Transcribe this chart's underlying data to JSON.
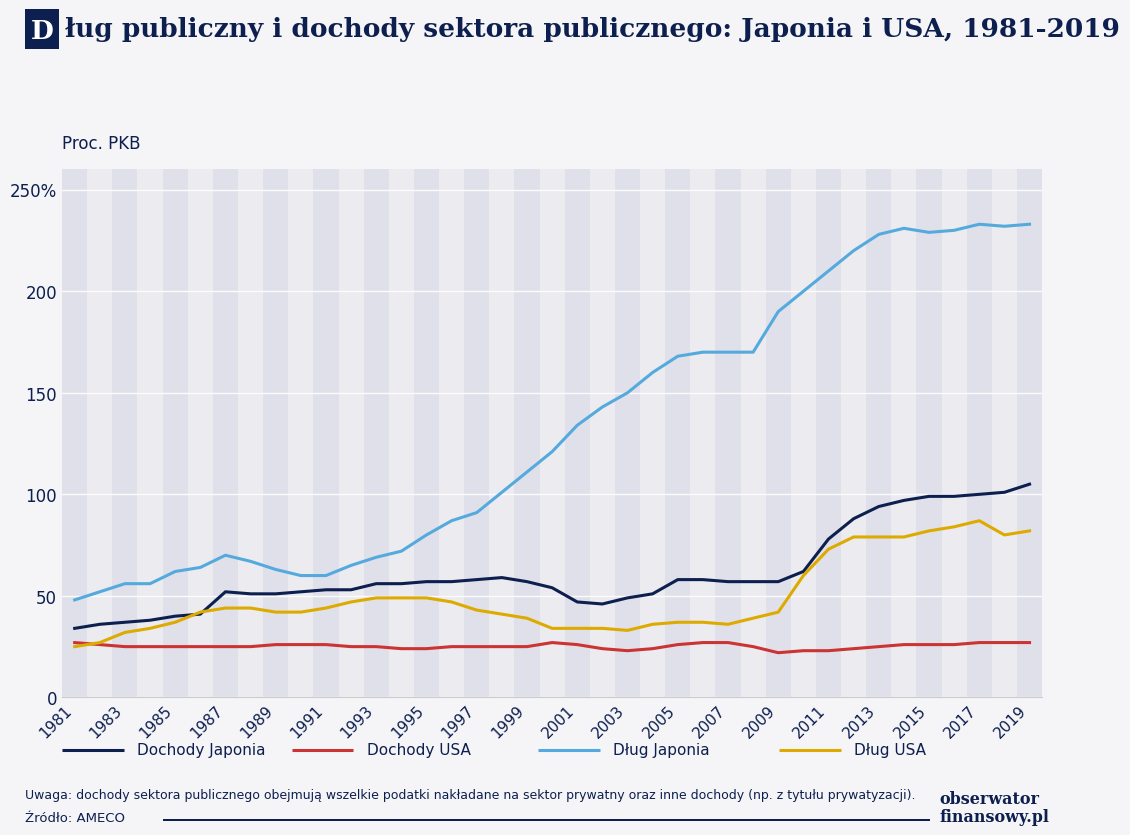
{
  "title_rest": "ług publiczny i dochody sektora publicznego: Japonia i USA, 1981-2019",
  "ylabel": "Proc. PKB",
  "background_color": "#f5f5f8",
  "plot_bg_color": "#ebebf0",
  "stripe_color_odd": "#e0e0ea",
  "stripe_color_even": "#ebebf0",
  "title_color": "#0d1f4e",
  "axis_color": "#0d1f4e",
  "text_color": "#1a1a2e",
  "note": "Uwaga: dochody sektora publicznego obejmują wszelkie podatki nakładane na sektor prywatny oraz inne dochody (np. z tytułu prywatyzacji).",
  "source": "Źródło: AMECO",
  "years": [
    1981,
    1982,
    1983,
    1984,
    1985,
    1986,
    1987,
    1988,
    1989,
    1990,
    1991,
    1992,
    1993,
    1994,
    1995,
    1996,
    1997,
    1998,
    1999,
    2000,
    2001,
    2002,
    2003,
    2004,
    2005,
    2006,
    2007,
    2008,
    2009,
    2010,
    2011,
    2012,
    2013,
    2014,
    2015,
    2016,
    2017,
    2018,
    2019
  ],
  "dochody_japonia": [
    34,
    36,
    37,
    38,
    40,
    41,
    52,
    51,
    51,
    52,
    53,
    53,
    56,
    56,
    57,
    57,
    58,
    59,
    57,
    54,
    47,
    46,
    49,
    51,
    58,
    58,
    57,
    57,
    57,
    62,
    78,
    88,
    94,
    97,
    99,
    99,
    100,
    101,
    105
  ],
  "dochody_usa": [
    27,
    26,
    25,
    25,
    25,
    25,
    25,
    25,
    26,
    26,
    26,
    25,
    25,
    24,
    24,
    25,
    25,
    25,
    25,
    27,
    26,
    24,
    23,
    24,
    26,
    27,
    27,
    25,
    22,
    23,
    23,
    24,
    25,
    26,
    26,
    26,
    27,
    27,
    27
  ],
  "dlug_japonia": [
    48,
    52,
    56,
    56,
    62,
    64,
    70,
    67,
    63,
    60,
    60,
    65,
    69,
    72,
    80,
    87,
    91,
    101,
    111,
    121,
    134,
    143,
    150,
    160,
    168,
    170,
    170,
    170,
    190,
    200,
    210,
    220,
    228,
    231,
    229,
    230,
    233,
    232,
    233
  ],
  "dlug_usa": [
    25,
    27,
    32,
    34,
    37,
    42,
    44,
    44,
    42,
    42,
    44,
    47,
    49,
    49,
    49,
    47,
    43,
    41,
    39,
    34,
    34,
    34,
    33,
    36,
    37,
    37,
    36,
    39,
    42,
    60,
    73,
    79,
    79,
    79,
    82,
    84,
    87,
    80,
    82
  ],
  "line_colors": {
    "dochody_japonia": "#0d1f4e",
    "dochody_usa": "#cc3333",
    "dlug_japonia": "#55aadd",
    "dlug_usa": "#ddaa00"
  },
  "line_widths": {
    "dochody_japonia": 2.2,
    "dochody_usa": 2.2,
    "dlug_japonia": 2.2,
    "dlug_usa": 2.2
  },
  "legend_labels": [
    "Dochody Japonia",
    "Dochody USA",
    "Dług Japonia",
    "Dług USA"
  ],
  "ylim": [
    0,
    260
  ],
  "yticks": [
    0,
    50,
    100,
    150,
    200,
    250
  ],
  "ytick_labels": [
    "0",
    "50",
    "100",
    "150",
    "200",
    "250%"
  ]
}
